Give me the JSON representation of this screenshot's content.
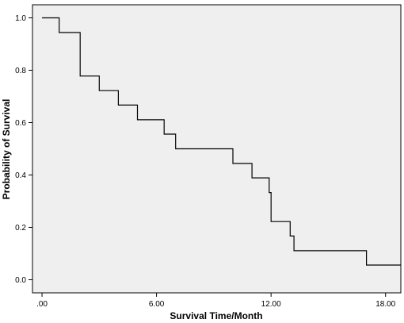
{
  "chart_data": {
    "type": "line",
    "step": true,
    "xlabel": "Survival Time/Month",
    "ylabel": "Probability of Survival",
    "xlim": [
      -0.5,
      18.8
    ],
    "ylim": [
      -0.05,
      1.05
    ],
    "xticks": [
      0,
      6,
      12,
      18
    ],
    "xtick_labels": [
      ".00",
      "6.00",
      "12.00",
      "18.00"
    ],
    "yticks": [
      0.0,
      0.2,
      0.4,
      0.6,
      0.8,
      1.0
    ],
    "ytick_labels": [
      "0.0",
      "0.2",
      "0.4",
      "0.6",
      "0.8",
      "1.0"
    ],
    "grid": false,
    "legend": "none",
    "colors": {
      "plot_background": "#efefef",
      "line": "#000000"
    },
    "series": [
      {
        "x": [
          0,
          0.9,
          2.0,
          3.0,
          4.0,
          5.0,
          6.4,
          7.0,
          10.0,
          11.0,
          11.9,
          12.0,
          13.0,
          13.2,
          17.0,
          18.8
        ],
        "y": [
          1.0,
          0.944,
          0.778,
          0.722,
          0.667,
          0.611,
          0.556,
          0.5,
          0.444,
          0.389,
          0.333,
          0.222,
          0.167,
          0.111,
          0.056,
          0.056
        ]
      }
    ]
  }
}
